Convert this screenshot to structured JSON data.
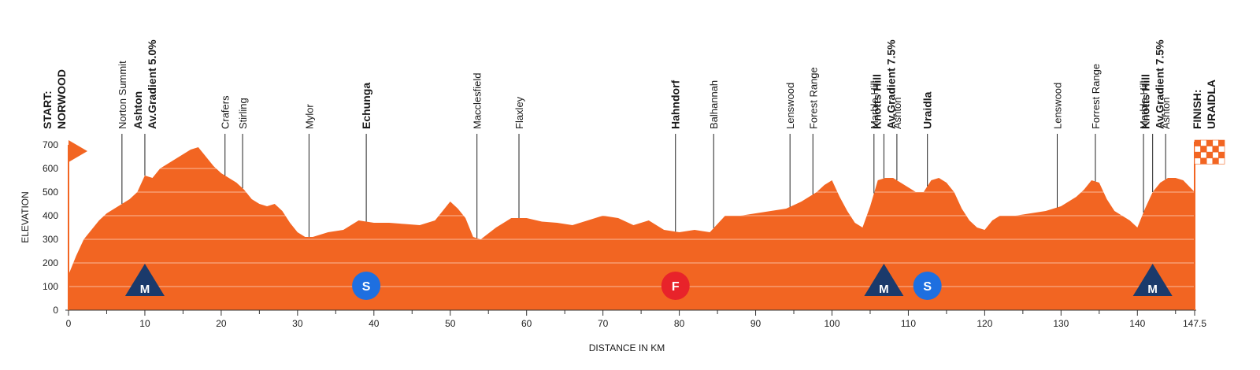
{
  "chart_data": {
    "type": "area",
    "xlabel": "DISTANCE IN KM",
    "ylabel": "ELEVATION",
    "xlim": [
      0,
      147.5
    ],
    "ylim": [
      0,
      700
    ],
    "x_ticks": [
      0,
      10,
      20,
      30,
      40,
      50,
      60,
      70,
      80,
      90,
      100,
      110,
      120,
      130,
      140
    ],
    "x_end_label": "147.5",
    "y_ticks": [
      0,
      100,
      200,
      300,
      400,
      500,
      600,
      700
    ],
    "colors": {
      "fill": "#F26522",
      "text": "#1a1a1a",
      "marker_blue": "#1B3A6B",
      "sprint": "#1E6FE0",
      "feed": "#E8232A"
    },
    "profile": {
      "x": [
        0,
        1,
        2,
        3,
        4,
        5,
        6,
        7,
        8,
        9,
        10,
        11,
        12,
        13,
        14,
        15,
        16,
        17,
        18,
        19,
        20,
        21,
        22,
        23,
        24,
        25,
        26,
        27,
        28,
        29,
        30,
        31,
        32,
        34,
        36,
        38,
        40,
        42,
        44,
        46,
        48,
        49,
        50,
        51,
        52,
        53,
        54,
        56,
        58,
        60,
        62,
        64,
        66,
        68,
        70,
        72,
        74,
        76,
        78,
        80,
        82,
        84,
        86,
        88,
        90,
        92,
        94,
        96,
        97,
        98,
        99,
        100,
        101,
        102,
        103,
        104,
        105,
        106,
        107,
        108,
        109,
        110,
        111,
        112,
        113,
        114,
        115,
        116,
        117,
        118,
        119,
        120,
        121,
        122,
        124,
        126,
        128,
        130,
        132,
        133,
        134,
        135,
        136,
        137,
        138,
        139,
        140,
        141,
        142,
        143,
        144,
        145,
        146,
        147.5
      ],
      "y": [
        150,
        230,
        300,
        340,
        380,
        410,
        430,
        450,
        470,
        500,
        570,
        560,
        600,
        620,
        640,
        660,
        680,
        690,
        650,
        610,
        580,
        560,
        540,
        510,
        470,
        450,
        440,
        450,
        420,
        370,
        330,
        310,
        310,
        330,
        340,
        380,
        370,
        370,
        365,
        360,
        380,
        420,
        460,
        430,
        390,
        310,
        300,
        350,
        390,
        390,
        375,
        370,
        360,
        380,
        400,
        390,
        360,
        380,
        340,
        330,
        340,
        330,
        400,
        400,
        410,
        420,
        430,
        460,
        480,
        500,
        530,
        550,
        480,
        420,
        370,
        350,
        440,
        550,
        560,
        560,
        540,
        520,
        500,
        500,
        550,
        560,
        540,
        500,
        430,
        380,
        350,
        340,
        380,
        400,
        400,
        410,
        420,
        440,
        480,
        510,
        550,
        540,
        470,
        420,
        400,
        380,
        350,
        430,
        500,
        540,
        560,
        560,
        550,
        500
      ]
    },
    "places": [
      {
        "km": 0,
        "lines": [
          "START:",
          "NORWOOD"
        ],
        "bold": true,
        "tick": false
      },
      {
        "km": 7,
        "lines": [
          "Norton Summit"
        ],
        "bold": false,
        "tick": true
      },
      {
        "km": 10,
        "lines": [
          "Ashton",
          "Av.Gradient 5.0%"
        ],
        "bold": true,
        "tick": true
      },
      {
        "km": 20.5,
        "lines": [
          "Crafers"
        ],
        "bold": false,
        "tick": true
      },
      {
        "km": 22.8,
        "lines": [
          "Stirling"
        ],
        "bold": false,
        "tick": true
      },
      {
        "km": 31.5,
        "lines": [
          "Mylor"
        ],
        "bold": false,
        "tick": true
      },
      {
        "km": 39,
        "lines": [
          "Echunga"
        ],
        "bold": true,
        "tick": true
      },
      {
        "km": 53.5,
        "lines": [
          "Macclesfield"
        ],
        "bold": false,
        "tick": true
      },
      {
        "km": 59,
        "lines": [
          "Flaxley"
        ],
        "bold": false,
        "tick": true
      },
      {
        "km": 79.5,
        "lines": [
          "Hahndorf"
        ],
        "bold": true,
        "tick": true
      },
      {
        "km": 84.5,
        "lines": [
          "Balhannah"
        ],
        "bold": false,
        "tick": true
      },
      {
        "km": 94.5,
        "lines": [
          "Lenswood"
        ],
        "bold": false,
        "tick": true
      },
      {
        "km": 97.5,
        "lines": [
          "Forest Range"
        ],
        "bold": false,
        "tick": true
      },
      {
        "km": 105.5,
        "lines": [
          "Marble Hill"
        ],
        "bold": false,
        "tick": true
      },
      {
        "km": 106.8,
        "lines": [
          "Knotts Hill",
          "Av.Gradient 7.5%"
        ],
        "bold": true,
        "tick": true
      },
      {
        "km": 108.5,
        "lines": [
          "Ashton"
        ],
        "bold": false,
        "tick": true
      },
      {
        "km": 112.5,
        "lines": [
          "Uraidla"
        ],
        "bold": true,
        "tick": true
      },
      {
        "km": 129.5,
        "lines": [
          "Lenswood"
        ],
        "bold": false,
        "tick": true
      },
      {
        "km": 134.5,
        "lines": [
          "Forrest Range"
        ],
        "bold": false,
        "tick": true
      },
      {
        "km": 140.8,
        "lines": [
          "Marble Hill"
        ],
        "bold": false,
        "tick": true
      },
      {
        "km": 142,
        "lines": [
          "Knotts Hill",
          "Av.Gradient 7.5%"
        ],
        "bold": true,
        "tick": true
      },
      {
        "km": 143.7,
        "lines": [
          "Ashton"
        ],
        "bold": false,
        "tick": true
      },
      {
        "km": 147.5,
        "lines": [
          "FINISH:",
          "URAIDLA"
        ],
        "bold": true,
        "tick": false
      }
    ],
    "markers": [
      {
        "km": 10,
        "type": "mountain",
        "label": "M"
      },
      {
        "km": 39,
        "type": "sprint",
        "label": "S"
      },
      {
        "km": 79.5,
        "type": "feed",
        "label": "F"
      },
      {
        "km": 106.8,
        "type": "mountain",
        "label": "M"
      },
      {
        "km": 112.5,
        "type": "sprint",
        "label": "S"
      },
      {
        "km": 142,
        "type": "mountain",
        "label": "M"
      }
    ]
  }
}
